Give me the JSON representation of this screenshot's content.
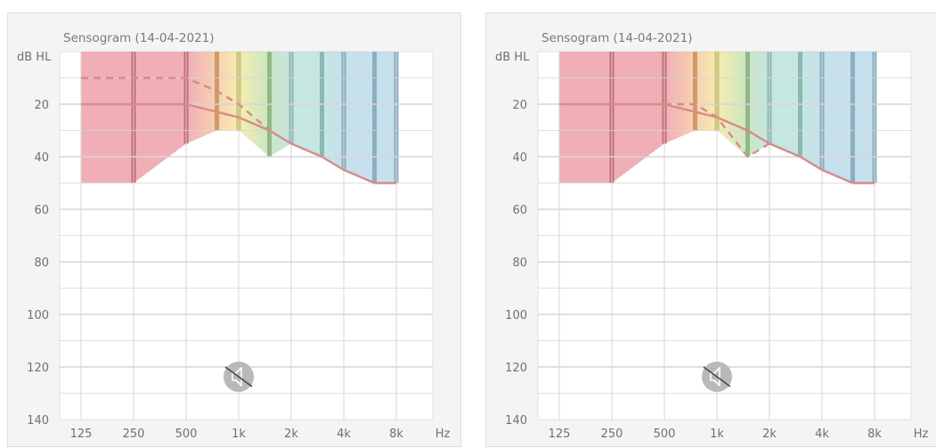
{
  "chart_data": [
    {
      "type": "line",
      "title": "Sensogram (14-04-2021)",
      "ylabel": "dB HL",
      "xlabel": "Hz",
      "x_ticks": [
        "125",
        "250",
        "500",
        "1k",
        "2k",
        "4k",
        "8k"
      ],
      "y_ticks": [
        "20",
        "40",
        "60",
        "80",
        "100",
        "120",
        "140"
      ],
      "ylim": [
        0,
        140
      ],
      "y_inverted": true,
      "x_scale": "log",
      "band_frequencies_hz": [
        125,
        250,
        500,
        750,
        1000,
        1500,
        2000,
        3000,
        4000,
        6000,
        8000
      ],
      "band_lower_bound_db": [
        50,
        50,
        35,
        30,
        30,
        40,
        35,
        40,
        45,
        50,
        50
      ],
      "series": [
        {
          "style": "solid",
          "x": [
            125,
            500,
            1000,
            1500,
            2000,
            3000,
            4000,
            6000,
            8000
          ],
          "y": [
            20,
            20,
            25,
            30,
            35,
            40,
            45,
            50,
            50
          ]
        },
        {
          "style": "dashed",
          "x": [
            125,
            500,
            750,
            1000,
            1500
          ],
          "y": [
            10,
            10,
            15,
            20,
            30
          ]
        }
      ],
      "muted_icon": "speaker-muted-icon"
    },
    {
      "type": "line",
      "title": "Sensogram (14-04-2021)",
      "ylabel": "dB HL",
      "xlabel": "Hz",
      "x_ticks": [
        "125",
        "250",
        "500",
        "1k",
        "2k",
        "4k",
        "8k"
      ],
      "y_ticks": [
        "20",
        "40",
        "60",
        "80",
        "100",
        "120",
        "140"
      ],
      "ylim": [
        0,
        140
      ],
      "y_inverted": true,
      "x_scale": "log",
      "band_frequencies_hz": [
        125,
        250,
        500,
        750,
        1000,
        1500,
        2000,
        3000,
        4000,
        6000,
        8000
      ],
      "band_lower_bound_db": [
        50,
        50,
        35,
        30,
        30,
        40,
        35,
        40,
        45,
        50,
        50
      ],
      "series": [
        {
          "style": "solid",
          "x": [
            125,
            500,
            1000,
            1500,
            2000,
            3000,
            4000,
            6000,
            8000
          ],
          "y": [
            20,
            20,
            25,
            30,
            35,
            40,
            45,
            50,
            50
          ]
        },
        {
          "style": "dashed",
          "x": [
            500,
            750,
            1000,
            1500,
            2000
          ],
          "y": [
            20,
            20,
            25,
            40,
            35
          ]
        }
      ],
      "muted_icon": "speaker-muted-icon"
    }
  ],
  "colors": {
    "red": "#e67a86",
    "orange": "#f2b27c",
    "yellow": "#efe07a",
    "green": "#a7d59a",
    "teal": "#9fd6cf",
    "blue": "#9fcbe0",
    "curve": "#d98a8a",
    "grid": "#d6d6d6"
  }
}
